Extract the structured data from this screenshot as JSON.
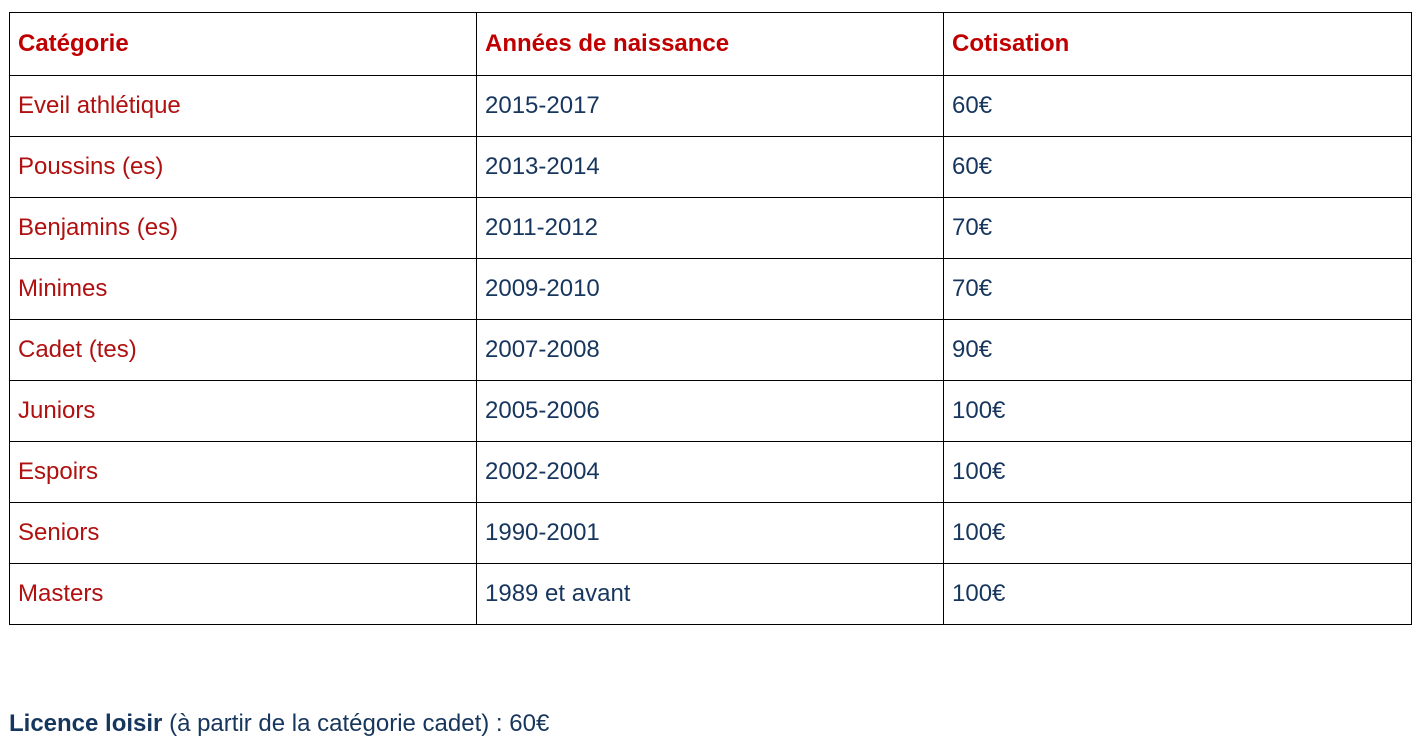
{
  "table": {
    "headers": [
      "Catégorie",
      "Années de naissance",
      "Cotisation"
    ],
    "rows": [
      [
        "Eveil athlétique",
        "2015-2017",
        "60€"
      ],
      [
        "Poussins (es)",
        "2013-2014",
        "60€"
      ],
      [
        "Benjamins (es)",
        "2011-2012",
        "70€"
      ],
      [
        "Minimes",
        "2009-2010",
        "70€"
      ],
      [
        "Cadet (tes)",
        "2007-2008",
        "90€"
      ],
      [
        "Juniors",
        "2005-2006",
        "100€"
      ],
      [
        "Espoirs",
        "2002-2004",
        "100€"
      ],
      [
        "Seniors",
        "1990-2001",
        "100€"
      ],
      [
        "Masters",
        "1989 et avant",
        "100€"
      ]
    ]
  },
  "note": {
    "label": "Licence loisir",
    "text": " (à partir de la catégorie cadet) : 60€"
  },
  "colors": {
    "header_text": "#c00000",
    "category_text": "#b01010",
    "value_text": "#17365d",
    "border": "#000000"
  }
}
